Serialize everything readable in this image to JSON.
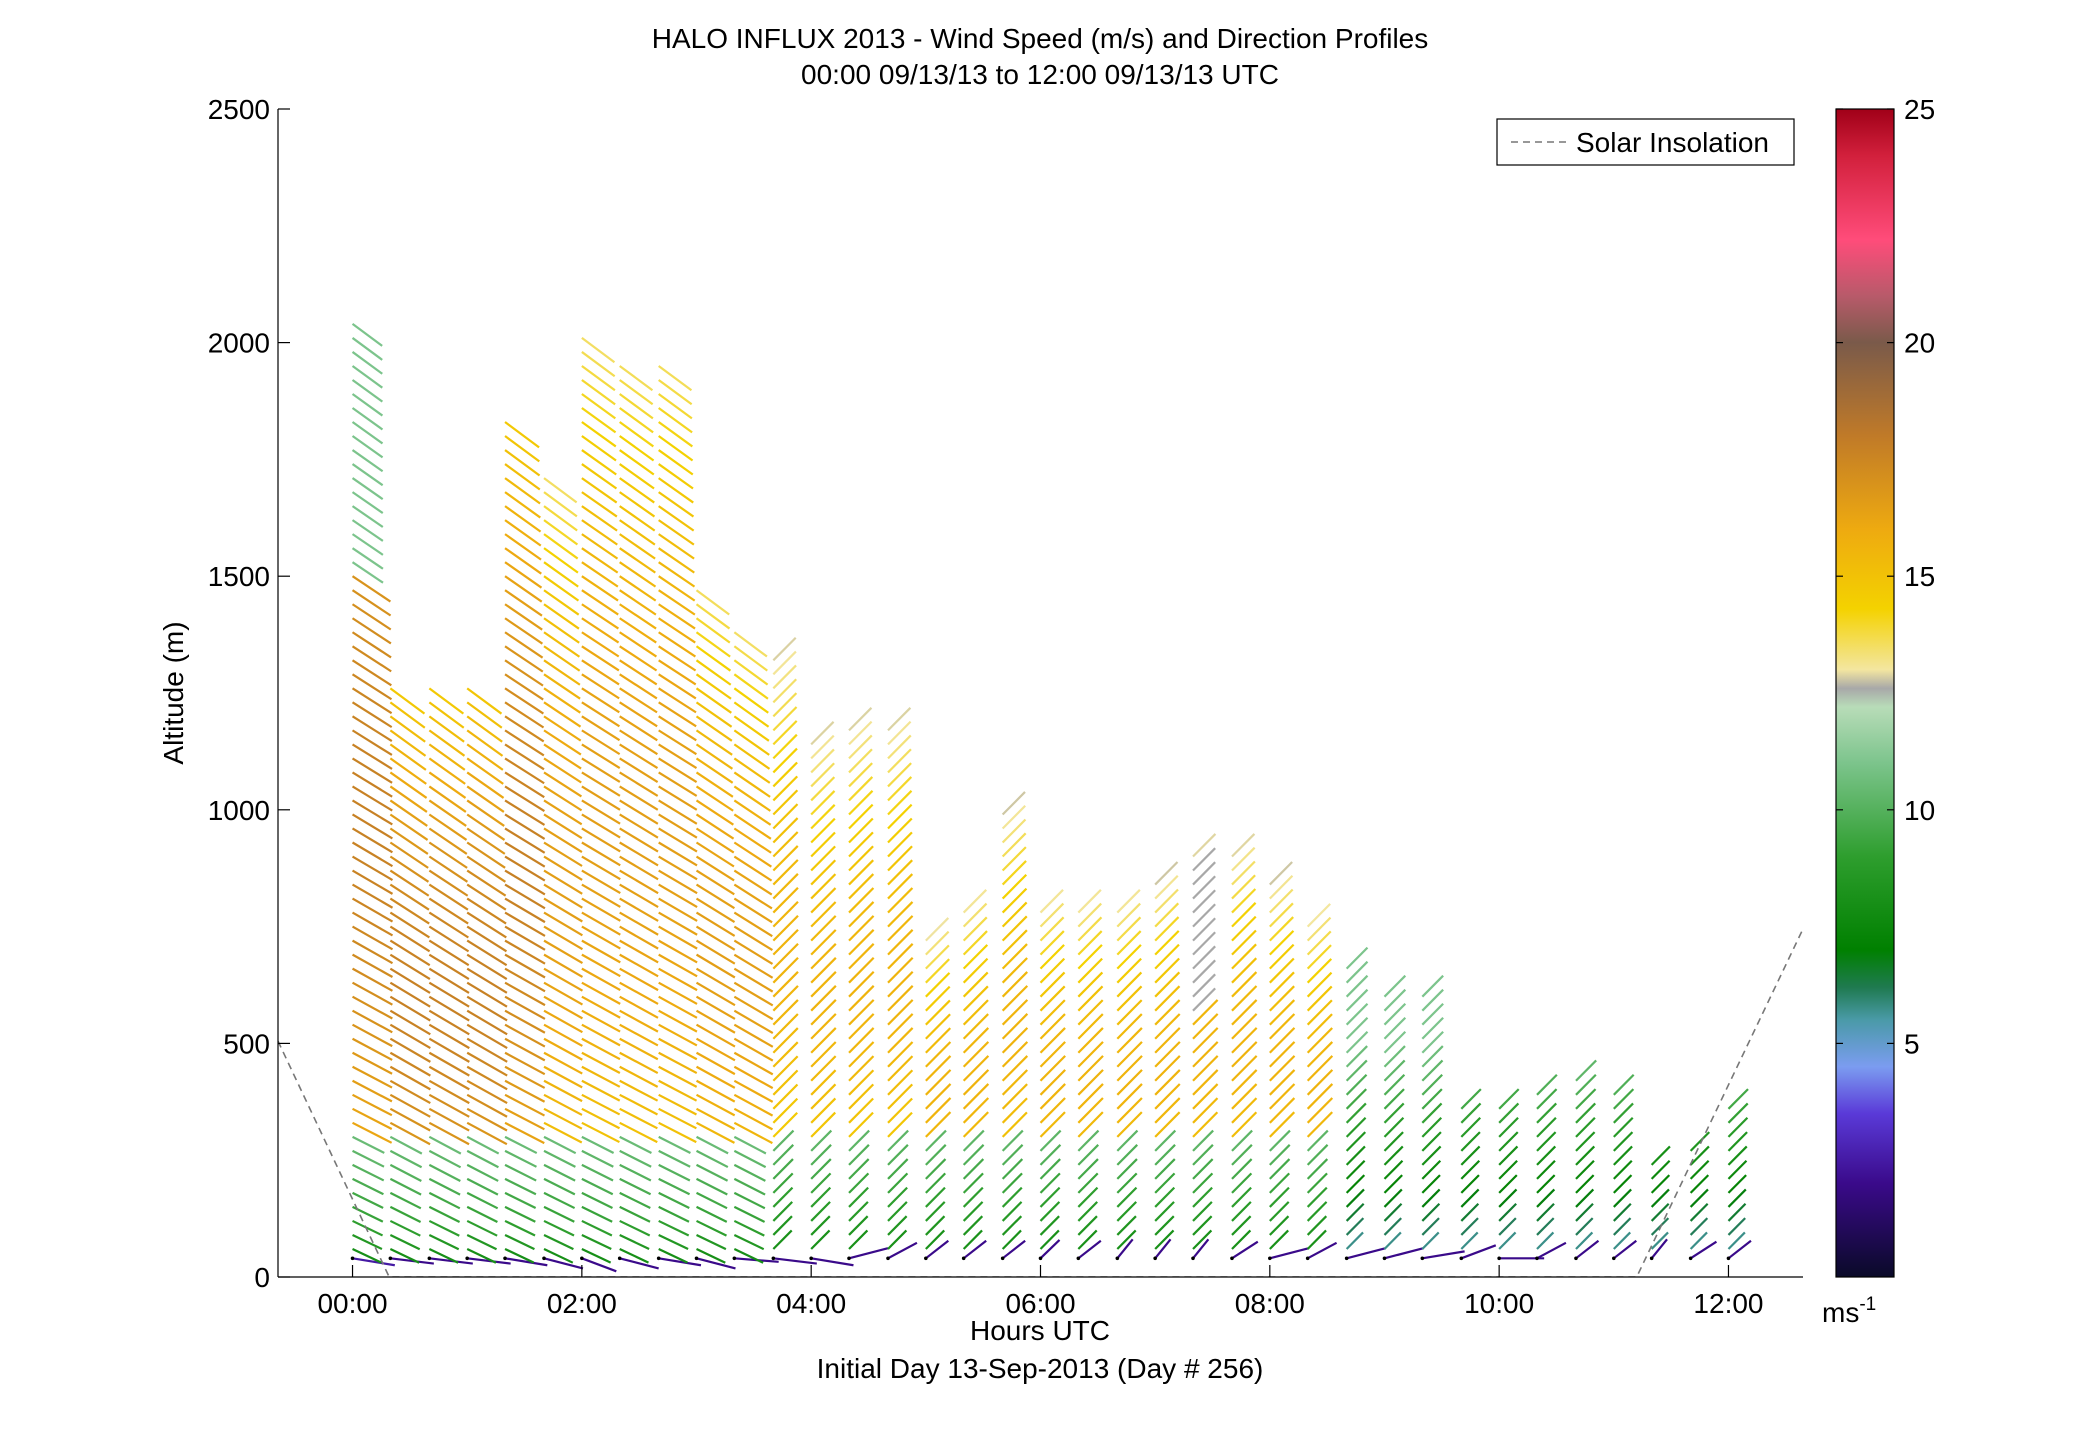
{
  "chart_data": {
    "type": "scatter",
    "title": "HALO INFLUX 2013 - Wind Speed (m/s) and Direction Profiles",
    "subtitle": "00:00 09/13/13 to 12:00 09/13/13  UTC",
    "xlabel": "Hours UTC",
    "xlabel2": "Initial Day 13-Sep-2013 (Day # 256)",
    "ylabel": "Altitude (m)",
    "xlim_hours": [
      -0.65,
      12.65
    ],
    "ylim": [
      0,
      2500
    ],
    "x_ticks": [
      {
        "value": 0,
        "label": "00:00"
      },
      {
        "value": 2,
        "label": "02:00"
      },
      {
        "value": 4,
        "label": "04:00"
      },
      {
        "value": 6,
        "label": "06:00"
      },
      {
        "value": 8,
        "label": "08:00"
      },
      {
        "value": 10,
        "label": "10:00"
      },
      {
        "value": 12,
        "label": "12:00"
      }
    ],
    "y_ticks": [
      {
        "value": 0,
        "label": "0"
      },
      {
        "value": 500,
        "label": "500"
      },
      {
        "value": 1000,
        "label": "1000"
      },
      {
        "value": 1500,
        "label": "1500"
      },
      {
        "value": 2000,
        "label": "2000"
      },
      {
        "value": 2500,
        "label": "2500"
      }
    ],
    "legend": {
      "position": "top-right",
      "entries": [
        {
          "label": "Solar Insolation",
          "style": "dashed",
          "color": "#777777"
        }
      ]
    },
    "colorbar": {
      "unit_label": "ms",
      "unit_exponent": "-1",
      "range": [
        0,
        25
      ],
      "ticks": [
        {
          "value": 5,
          "label": "5"
        },
        {
          "value": 10,
          "label": "10"
        },
        {
          "value": 15,
          "label": "15"
        },
        {
          "value": 20,
          "label": "20"
        },
        {
          "value": 25,
          "label": "25"
        }
      ],
      "stops": [
        {
          "value": 0,
          "color": "#0a0a28"
        },
        {
          "value": 2,
          "color": "#3a0a8a"
        },
        {
          "value": 3.5,
          "color": "#5a3ad8"
        },
        {
          "value": 4.5,
          "color": "#7b9cf0"
        },
        {
          "value": 5.5,
          "color": "#4a9aa8"
        },
        {
          "value": 6.2,
          "color": "#1f7a50"
        },
        {
          "value": 7,
          "color": "#008000"
        },
        {
          "value": 9,
          "color": "#2e9e2e"
        },
        {
          "value": 11,
          "color": "#7cc48c"
        },
        {
          "value": 12.2,
          "color": "#b8dcb8"
        },
        {
          "value": 12.6,
          "color": "#a8a8a8"
        },
        {
          "value": 13,
          "color": "#f3e6a0"
        },
        {
          "value": 14.3,
          "color": "#f4d200"
        },
        {
          "value": 16,
          "color": "#eeaa10"
        },
        {
          "value": 18,
          "color": "#c07a28"
        },
        {
          "value": 20,
          "color": "#7a5a4a"
        },
        {
          "value": 21,
          "color": "#b85a6a"
        },
        {
          "value": 22.2,
          "color": "#ff4c7a"
        },
        {
          "value": 24,
          "color": "#d2203c"
        },
        {
          "value": 25,
          "color": "#a00018"
        }
      ]
    },
    "solar_insolation": [
      {
        "hour": -0.65,
        "altitude": 505
      },
      {
        "hour": 0.32,
        "altitude": 0
      },
      {
        "hour": 11.2,
        "altitude": 0
      },
      {
        "hour": 12.65,
        "altitude": 745
      }
    ],
    "profiles": [
      {
        "hour": 0.0,
        "top": 2060,
        "near_sfc_speed": 2.5,
        "near_sfc_dir": 290
      },
      {
        "hour": 0.33,
        "top": 1265,
        "near_sfc_speed": 2.0,
        "near_sfc_dir": 285
      },
      {
        "hour": 0.67,
        "top": 1260,
        "near_sfc_speed": 2.0,
        "near_sfc_dir": 285
      },
      {
        "hour": 1.0,
        "top": 1280,
        "near_sfc_speed": 2.0,
        "near_sfc_dir": 285
      },
      {
        "hour": 1.33,
        "top": 1830,
        "near_sfc_speed": 2.0,
        "near_sfc_dir": 290
      },
      {
        "hour": 1.67,
        "top": 1710,
        "near_sfc_speed": 2.0,
        "near_sfc_dir": 300
      },
      {
        "hour": 2.0,
        "top": 2010,
        "near_sfc_speed": 2.0,
        "near_sfc_dir": 310
      },
      {
        "hour": 2.33,
        "top": 1970,
        "near_sfc_speed": 2.0,
        "near_sfc_dir": 300
      },
      {
        "hour": 2.67,
        "top": 1970,
        "near_sfc_speed": 2.0,
        "near_sfc_dir": 290
      },
      {
        "hour": 3.0,
        "top": 1480,
        "near_sfc_speed": 2.0,
        "near_sfc_dir": 300
      },
      {
        "hour": 3.33,
        "top": 1380,
        "near_sfc_speed": 2.0,
        "near_sfc_dir": 280
      },
      {
        "hour": 3.67,
        "top": 1330,
        "near_sfc_speed": 2.0,
        "near_sfc_dir": 285
      },
      {
        "hour": 4.0,
        "top": 1150,
        "near_sfc_speed": 2.0,
        "near_sfc_dir": 290
      },
      {
        "hour": 4.33,
        "top": 1180,
        "near_sfc_speed": 2.0,
        "near_sfc_dir": 240
      },
      {
        "hour": 4.67,
        "top": 1180,
        "near_sfc_speed": 2.0,
        "near_sfc_dir": 220
      },
      {
        "hour": 5.0,
        "top": 735,
        "near_sfc_speed": 2.0,
        "near_sfc_dir": 210
      },
      {
        "hour": 5.33,
        "top": 805,
        "near_sfc_speed": 2.0,
        "near_sfc_dir": 210
      },
      {
        "hour": 5.67,
        "top": 990,
        "near_sfc_speed": 2.0,
        "near_sfc_dir": 210
      },
      {
        "hour": 6.0,
        "top": 805,
        "near_sfc_speed": 2.0,
        "near_sfc_dir": 205
      },
      {
        "hour": 6.33,
        "top": 805,
        "near_sfc_speed": 2.0,
        "near_sfc_dir": 210
      },
      {
        "hour": 6.67,
        "top": 805,
        "near_sfc_speed": 2.0,
        "near_sfc_dir": 200
      },
      {
        "hour": 7.0,
        "top": 840,
        "near_sfc_speed": 2.0,
        "near_sfc_dir": 200
      },
      {
        "hour": 7.33,
        "top": 910,
        "near_sfc_speed": 2.0,
        "near_sfc_dir": 200
      },
      {
        "hour": 7.67,
        "top": 910,
        "near_sfc_speed": 2.0,
        "near_sfc_dir": 215
      },
      {
        "hour": 8.0,
        "top": 840,
        "near_sfc_speed": 2.0,
        "near_sfc_dir": 240
      },
      {
        "hour": 8.33,
        "top": 770,
        "near_sfc_speed": 2.0,
        "near_sfc_dir": 220
      },
      {
        "hour": 8.67,
        "top": 665,
        "near_sfc_speed": 2.0,
        "near_sfc_dir": 240
      },
      {
        "hour": 9.0,
        "top": 600,
        "near_sfc_speed": 2.0,
        "near_sfc_dir": 240
      },
      {
        "hour": 9.33,
        "top": 600,
        "near_sfc_speed": 2.0,
        "near_sfc_dir": 250
      },
      {
        "hour": 9.67,
        "top": 375,
        "near_sfc_speed": 2.0,
        "near_sfc_dir": 230
      },
      {
        "hour": 10.0,
        "top": 375,
        "near_sfc_speed": 2.0,
        "near_sfc_dir": 270
      },
      {
        "hour": 10.33,
        "top": 410,
        "near_sfc_speed": 2.0,
        "near_sfc_dir": 220
      },
      {
        "hour": 10.67,
        "top": 440,
        "near_sfc_speed": 2.0,
        "near_sfc_dir": 210
      },
      {
        "hour": 11.0,
        "top": 410,
        "near_sfc_speed": 2.0,
        "near_sfc_dir": 210
      },
      {
        "hour": 11.33,
        "top": 260,
        "near_sfc_speed": 2.0,
        "near_sfc_dir": 200
      },
      {
        "hour": 11.67,
        "top": 270,
        "near_sfc_speed": 2.0,
        "near_sfc_dir": 215
      },
      {
        "hour": 12.0,
        "top": 380,
        "near_sfc_speed": 2.0,
        "near_sfc_dir": 210
      }
    ],
    "grid": false
  }
}
